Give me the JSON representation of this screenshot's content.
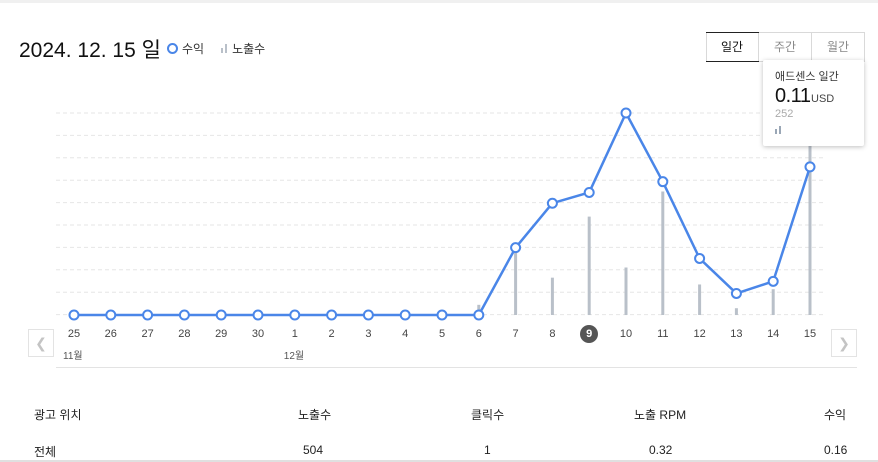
{
  "header": {
    "date": "2024. 12. 15 일",
    "legend_revenue": "수익",
    "legend_impressions": "노출수"
  },
  "period_tabs": [
    "일간",
    "주간",
    "월간"
  ],
  "active_period": "일간",
  "tooltip": {
    "title": "애드센스 일간",
    "value": "0.11",
    "unit": "USD",
    "impressions": "252"
  },
  "x_axis": {
    "labels": [
      "25",
      "26",
      "27",
      "28",
      "29",
      "30",
      "1",
      "2",
      "3",
      "4",
      "5",
      "6",
      "7",
      "8",
      "9",
      "10",
      "11",
      "12",
      "13",
      "14",
      "15"
    ],
    "selected": "9",
    "month_labels": [
      {
        "text": "11월",
        "under": "25"
      },
      {
        "text": "12월",
        "under": "1"
      }
    ]
  },
  "colors": {
    "line": "#4a86e8",
    "bar": "#b9c0c9",
    "grid": "#e6e6e6"
  },
  "chart_data": {
    "type": "line",
    "categories": [
      "11/25",
      "11/26",
      "11/27",
      "11/28",
      "11/29",
      "11/30",
      "12/1",
      "12/2",
      "12/3",
      "12/4",
      "12/5",
      "12/6",
      "12/7",
      "12/8",
      "12/9",
      "12/10",
      "12/11",
      "12/12",
      "12/13",
      "12/14",
      "12/15"
    ],
    "series": [
      {
        "name": "수익",
        "type": "line",
        "values": [
          0,
          0,
          0,
          0,
          0,
          0,
          0,
          0,
          0,
          0,
          0,
          0,
          0.05,
          0.083,
          0.091,
          0.15,
          0.099,
          0.042,
          0.016,
          0.025,
          0.11
        ]
      },
      {
        "name": "노출수",
        "type": "bar",
        "values": [
          0,
          0,
          0,
          0,
          0,
          0,
          0,
          0,
          0,
          0,
          0,
          15,
          95,
          55,
          145,
          70,
          182,
          45,
          10,
          38,
          252
        ]
      }
    ],
    "grid": true
  },
  "table": {
    "headers": [
      "광고 위치",
      "노출수",
      "클릭수",
      "노출 RPM",
      "수익"
    ],
    "rows": [
      [
        "전체",
        "504",
        "1",
        "0.32",
        "0.16"
      ]
    ]
  }
}
